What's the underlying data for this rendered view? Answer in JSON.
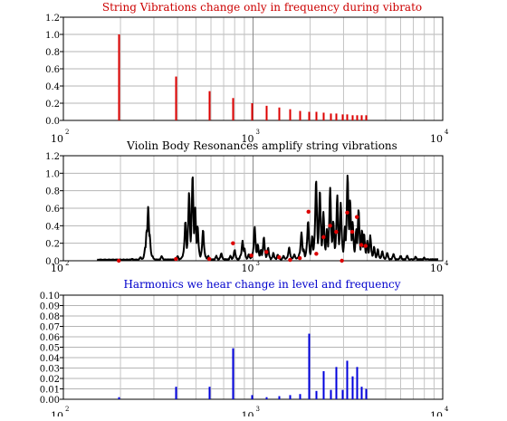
{
  "chart_data": [
    {
      "type": "bar",
      "title": "String Vibrations change only in frequency during vibrato",
      "title_color": "#cc0000",
      "series_color": "#dd0000",
      "x_scale": "log",
      "xlim": [
        100,
        10000
      ],
      "ylim": [
        0,
        1.2
      ],
      "y_ticks": [
        "0.0",
        "0.2",
        "0.4",
        "0.6",
        "0.8",
        "1.0",
        "1.2"
      ],
      "x_decade_labels": [
        {
          "base": "10",
          "exp": "2"
        },
        {
          "base": "10",
          "exp": "3"
        },
        {
          "base": "10",
          "exp": "4"
        }
      ],
      "grid": true,
      "x": [
        196,
        392,
        588,
        784,
        980,
        1176,
        1372,
        1568,
        1764,
        1960,
        2156,
        2352,
        2548,
        2744,
        2940,
        3136,
        3332,
        3528,
        3724,
        3920
      ],
      "values": [
        1.0,
        0.51,
        0.34,
        0.26,
        0.2,
        0.17,
        0.15,
        0.13,
        0.11,
        0.1,
        0.1,
        0.09,
        0.08,
        0.08,
        0.07,
        0.07,
        0.06,
        0.06,
        0.06,
        0.06
      ]
    },
    {
      "type": "line",
      "title": "Violin Body Resonances amplify string vibrations",
      "title_color": "#000000",
      "line_color": "#000000",
      "marker_color": "#dd0000",
      "x_scale": "log",
      "xlim": [
        100,
        10000
      ],
      "ylim": [
        0,
        1.2
      ],
      "y_ticks": [
        "0.0",
        "0.2",
        "0.4",
        "0.6",
        "0.8",
        "1.0",
        "1.2"
      ],
      "x_decade_labels": [
        {
          "base": "10",
          "exp": "2"
        },
        {
          "base": "10",
          "exp": "3"
        },
        {
          "base": "10",
          "exp": "4"
        }
      ],
      "grid": true,
      "resonances": [
        [
          230,
          0.02
        ],
        [
          255,
          0.04
        ],
        [
          270,
          0.15
        ],
        [
          275,
          0.35
        ],
        [
          280,
          0.62
        ],
        [
          285,
          0.3
        ],
        [
          295,
          0.05
        ],
        [
          330,
          0.05
        ],
        [
          400,
          0.05
        ],
        [
          440,
          0.45
        ],
        [
          460,
          0.78
        ],
        [
          480,
          0.98
        ],
        [
          495,
          0.62
        ],
        [
          510,
          0.4
        ],
        [
          545,
          0.35
        ],
        [
          580,
          0.05
        ],
        [
          640,
          0.05
        ],
        [
          680,
          0.08
        ],
        [
          760,
          0.05
        ],
        [
          800,
          0.12
        ],
        [
          860,
          0.06
        ],
        [
          880,
          0.22
        ],
        [
          900,
          0.14
        ],
        [
          950,
          0.07
        ],
        [
          1020,
          0.38
        ],
        [
          1060,
          0.18
        ],
        [
          1100,
          0.12
        ],
        [
          1140,
          0.26
        ],
        [
          1200,
          0.14
        ],
        [
          1280,
          0.08
        ],
        [
          1350,
          0.06
        ],
        [
          1450,
          0.05
        ],
        [
          1550,
          0.15
        ],
        [
          1650,
          0.06
        ],
        [
          1760,
          0.08
        ],
        [
          1800,
          0.32
        ],
        [
          1850,
          0.12
        ],
        [
          1950,
          0.45
        ],
        [
          2050,
          0.28
        ],
        [
          2150,
          0.92
        ],
        [
          2250,
          0.8
        ],
        [
          2350,
          0.55
        ],
        [
          2450,
          0.35
        ],
        [
          2550,
          0.82
        ],
        [
          2650,
          0.45
        ],
        [
          2780,
          0.74
        ],
        [
          2900,
          0.65
        ],
        [
          3050,
          0.38
        ],
        [
          3150,
          0.97
        ],
        [
          3250,
          0.7
        ],
        [
          3350,
          0.45
        ],
        [
          3500,
          0.35
        ],
        [
          3600,
          0.58
        ],
        [
          3750,
          0.35
        ],
        [
          3850,
          0.3
        ],
        [
          4000,
          0.22
        ],
        [
          4150,
          0.28
        ],
        [
          4350,
          0.15
        ],
        [
          4550,
          0.12
        ],
        [
          4800,
          0.1
        ],
        [
          5100,
          0.08
        ],
        [
          5500,
          0.07
        ],
        [
          6000,
          0.05
        ],
        [
          6500,
          0.05
        ],
        [
          7200,
          0.04
        ],
        [
          8000,
          0.03
        ]
      ],
      "markers": [
        [
          196,
          0.0
        ],
        [
          392,
          0.02
        ],
        [
          588,
          0.02
        ],
        [
          784,
          0.2
        ],
        [
          980,
          0.06
        ],
        [
          1176,
          0.1
        ],
        [
          1372,
          0.04
        ],
        [
          1568,
          0.01
        ],
        [
          1764,
          0.03
        ],
        [
          1960,
          0.56
        ],
        [
          2156,
          0.08
        ],
        [
          2352,
          0.27
        ],
        [
          2548,
          0.4
        ],
        [
          2744,
          0.33
        ],
        [
          2940,
          0.0
        ],
        [
          3136,
          0.55
        ],
        [
          3332,
          0.33
        ],
        [
          3528,
          0.5
        ],
        [
          3724,
          0.18
        ],
        [
          3920,
          0.17
        ]
      ]
    },
    {
      "type": "bar",
      "title": "Harmonics we hear change in level and frequency",
      "title_color": "#0000cc",
      "series_color": "#0000dd",
      "x_scale": "log",
      "xlim": [
        100,
        10000
      ],
      "ylim": [
        0,
        0.1
      ],
      "y_ticks": [
        "0.00",
        "0.01",
        "0.02",
        "0.03",
        "0.04",
        "0.05",
        "0.06",
        "0.07",
        "0.08",
        "0.09",
        "0.10"
      ],
      "x_decade_labels": [
        {
          "base": "10",
          "exp": "2"
        },
        {
          "base": "10",
          "exp": "3"
        },
        {
          "base": "10",
          "exp": "4"
        }
      ],
      "grid": true,
      "x": [
        196,
        392,
        588,
        784,
        980,
        1176,
        1372,
        1568,
        1764,
        1960,
        2156,
        2352,
        2548,
        2744,
        2940,
        3136,
        3332,
        3528,
        3724,
        3920
      ],
      "values": [
        0.002,
        0.012,
        0.012,
        0.049,
        0.004,
        0.002,
        0.003,
        0.004,
        0.005,
        0.063,
        0.008,
        0.027,
        0.009,
        0.031,
        0.009,
        0.037,
        0.022,
        0.031,
        0.012,
        0.01
      ]
    }
  ]
}
